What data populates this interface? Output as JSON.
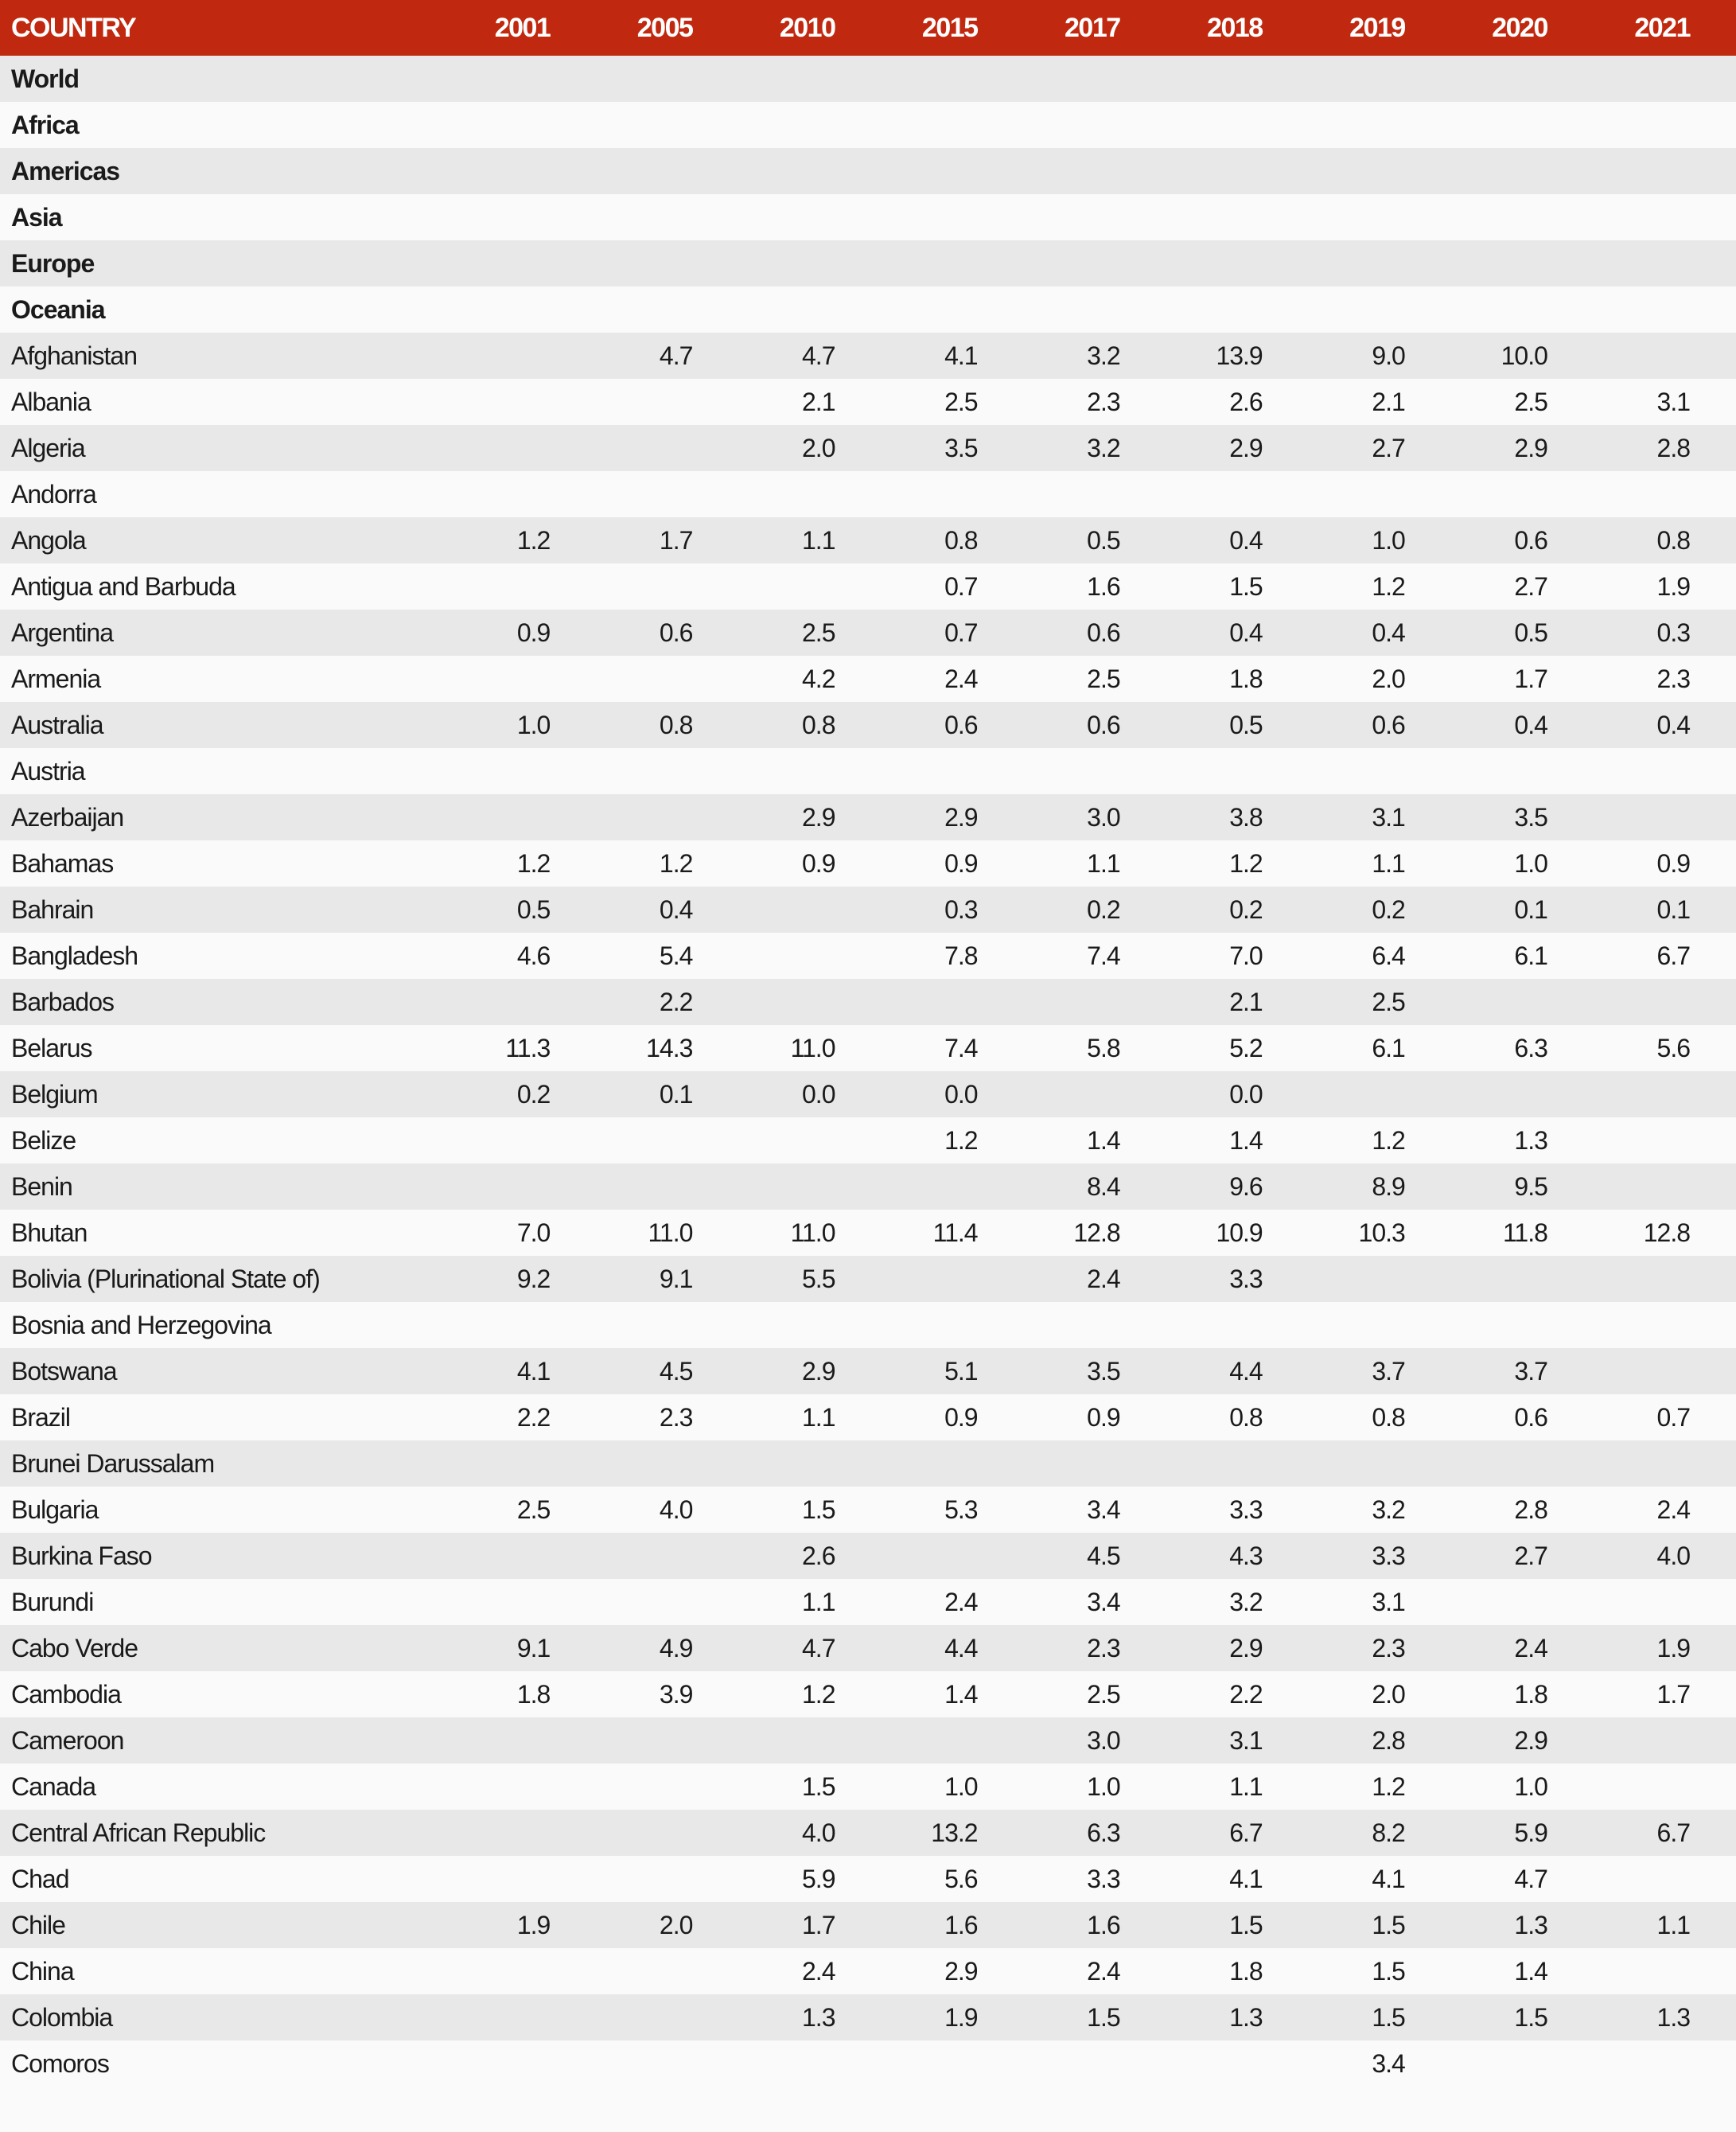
{
  "table": {
    "country_header": "COUNTRY",
    "years": [
      "2001",
      "2005",
      "2010",
      "2015",
      "2017",
      "2018",
      "2019",
      "2020",
      "2021"
    ],
    "header_color": "#c0290f",
    "rows": [
      {
        "name": "World",
        "bold": true,
        "values": [
          null,
          null,
          null,
          null,
          null,
          null,
          null,
          null,
          null
        ]
      },
      {
        "name": "Africa",
        "bold": true,
        "values": [
          null,
          null,
          null,
          null,
          null,
          null,
          null,
          null,
          null
        ]
      },
      {
        "name": "Americas",
        "bold": true,
        "values": [
          null,
          null,
          null,
          null,
          null,
          null,
          null,
          null,
          null
        ]
      },
      {
        "name": "Asia",
        "bold": true,
        "values": [
          null,
          null,
          null,
          null,
          null,
          null,
          null,
          null,
          null
        ]
      },
      {
        "name": "Europe",
        "bold": true,
        "values": [
          null,
          null,
          null,
          null,
          null,
          null,
          null,
          null,
          null
        ]
      },
      {
        "name": "Oceania",
        "bold": true,
        "values": [
          null,
          null,
          null,
          null,
          null,
          null,
          null,
          null,
          null
        ]
      },
      {
        "name": "Afghanistan",
        "values": [
          null,
          "4.7",
          "4.7",
          "4.1",
          "3.2",
          "13.9",
          "9.0",
          "10.0",
          null
        ]
      },
      {
        "name": "Albania",
        "values": [
          null,
          null,
          "2.1",
          "2.5",
          "2.3",
          "2.6",
          "2.1",
          "2.5",
          "3.1"
        ]
      },
      {
        "name": "Algeria",
        "values": [
          null,
          null,
          "2.0",
          "3.5",
          "3.2",
          "2.9",
          "2.7",
          "2.9",
          "2.8"
        ]
      },
      {
        "name": "Andorra",
        "values": [
          null,
          null,
          null,
          null,
          null,
          null,
          null,
          null,
          null
        ]
      },
      {
        "name": "Angola",
        "values": [
          "1.2",
          "1.7",
          "1.1",
          "0.8",
          "0.5",
          "0.4",
          "1.0",
          "0.6",
          "0.8"
        ]
      },
      {
        "name": "Antigua and Barbuda",
        "values": [
          null,
          null,
          null,
          "0.7",
          "1.6",
          "1.5",
          "1.2",
          "2.7",
          "1.9"
        ]
      },
      {
        "name": "Argentina",
        "values": [
          "0.9",
          "0.6",
          "2.5",
          "0.7",
          "0.6",
          "0.4",
          "0.4",
          "0.5",
          "0.3"
        ]
      },
      {
        "name": "Armenia",
        "values": [
          null,
          null,
          "4.2",
          "2.4",
          "2.5",
          "1.8",
          "2.0",
          "1.7",
          "2.3"
        ]
      },
      {
        "name": "Australia",
        "values": [
          "1.0",
          "0.8",
          "0.8",
          "0.6",
          "0.6",
          "0.5",
          "0.6",
          "0.4",
          "0.4"
        ]
      },
      {
        "name": "Austria",
        "values": [
          null,
          null,
          null,
          null,
          null,
          null,
          null,
          null,
          null
        ]
      },
      {
        "name": "Azerbaijan",
        "values": [
          null,
          null,
          "2.9",
          "2.9",
          "3.0",
          "3.8",
          "3.1",
          "3.5",
          null
        ]
      },
      {
        "name": "Bahamas",
        "values": [
          "1.2",
          "1.2",
          "0.9",
          "0.9",
          "1.1",
          "1.2",
          "1.1",
          "1.0",
          "0.9"
        ]
      },
      {
        "name": "Bahrain",
        "values": [
          "0.5",
          "0.4",
          null,
          "0.3",
          "0.2",
          "0.2",
          "0.2",
          "0.1",
          "0.1"
        ]
      },
      {
        "name": "Bangladesh",
        "values": [
          "4.6",
          "5.4",
          null,
          "7.8",
          "7.4",
          "7.0",
          "6.4",
          "6.1",
          "6.7"
        ]
      },
      {
        "name": "Barbados",
        "values": [
          null,
          "2.2",
          null,
          null,
          null,
          "2.1",
          "2.5",
          null,
          null
        ]
      },
      {
        "name": "Belarus",
        "values": [
          "11.3",
          "14.3",
          "11.0",
          "7.4",
          "5.8",
          "5.2",
          "6.1",
          "6.3",
          "5.6"
        ]
      },
      {
        "name": "Belgium",
        "values": [
          "0.2",
          "0.1",
          "0.0",
          "0.0",
          null,
          "0.0",
          null,
          null,
          null
        ]
      },
      {
        "name": "Belize",
        "values": [
          null,
          null,
          null,
          "1.2",
          "1.4",
          "1.4",
          "1.2",
          "1.3",
          null
        ]
      },
      {
        "name": "Benin",
        "values": [
          null,
          null,
          null,
          null,
          "8.4",
          "9.6",
          "8.9",
          "9.5",
          null
        ]
      },
      {
        "name": "Bhutan",
        "values": [
          "7.0",
          "11.0",
          "11.0",
          "11.4",
          "12.8",
          "10.9",
          "10.3",
          "11.8",
          "12.8"
        ]
      },
      {
        "name": "Bolivia (Plurinational State of)",
        "values": [
          "9.2",
          "9.1",
          "5.5",
          null,
          "2.4",
          "3.3",
          null,
          null,
          null
        ]
      },
      {
        "name": "Bosnia and Herzegovina",
        "values": [
          null,
          null,
          null,
          null,
          null,
          null,
          null,
          null,
          null
        ]
      },
      {
        "name": "Botswana",
        "values": [
          "4.1",
          "4.5",
          "2.9",
          "5.1",
          "3.5",
          "4.4",
          "3.7",
          "3.7",
          null
        ]
      },
      {
        "name": "Brazil",
        "values": [
          "2.2",
          "2.3",
          "1.1",
          "0.9",
          "0.9",
          "0.8",
          "0.8",
          "0.6",
          "0.7"
        ]
      },
      {
        "name": "Brunei Darussalam",
        "values": [
          null,
          null,
          null,
          null,
          null,
          null,
          null,
          null,
          null
        ]
      },
      {
        "name": "Bulgaria",
        "values": [
          "2.5",
          "4.0",
          "1.5",
          "5.3",
          "3.4",
          "3.3",
          "3.2",
          "2.8",
          "2.4"
        ]
      },
      {
        "name": "Burkina Faso",
        "values": [
          null,
          null,
          "2.6",
          null,
          "4.5",
          "4.3",
          "3.3",
          "2.7",
          "4.0"
        ]
      },
      {
        "name": "Burundi",
        "values": [
          null,
          null,
          "1.1",
          "2.4",
          "3.4",
          "3.2",
          "3.1",
          null,
          null
        ]
      },
      {
        "name": "Cabo Verde",
        "values": [
          "9.1",
          "4.9",
          "4.7",
          "4.4",
          "2.3",
          "2.9",
          "2.3",
          "2.4",
          "1.9"
        ]
      },
      {
        "name": "Cambodia",
        "values": [
          "1.8",
          "3.9",
          "1.2",
          "1.4",
          "2.5",
          "2.2",
          "2.0",
          "1.8",
          "1.7"
        ]
      },
      {
        "name": "Cameroon",
        "values": [
          null,
          null,
          null,
          null,
          "3.0",
          "3.1",
          "2.8",
          "2.9",
          null
        ]
      },
      {
        "name": "Canada",
        "values": [
          null,
          null,
          "1.5",
          "1.0",
          "1.0",
          "1.1",
          "1.2",
          "1.0",
          null
        ]
      },
      {
        "name": "Central African Republic",
        "values": [
          null,
          null,
          "4.0",
          "13.2",
          "6.3",
          "6.7",
          "8.2",
          "5.9",
          "6.7"
        ]
      },
      {
        "name": "Chad",
        "values": [
          null,
          null,
          "5.9",
          "5.6",
          "3.3",
          "4.1",
          "4.1",
          "4.7",
          null
        ]
      },
      {
        "name": "Chile",
        "values": [
          "1.9",
          "2.0",
          "1.7",
          "1.6",
          "1.6",
          "1.5",
          "1.5",
          "1.3",
          "1.1"
        ]
      },
      {
        "name": "China",
        "values": [
          null,
          null,
          "2.4",
          "2.9",
          "2.4",
          "1.8",
          "1.5",
          "1.4",
          null
        ]
      },
      {
        "name": "Colombia",
        "values": [
          null,
          null,
          "1.3",
          "1.9",
          "1.5",
          "1.3",
          "1.5",
          "1.5",
          "1.3"
        ]
      },
      {
        "name": "Comoros",
        "values": [
          null,
          null,
          null,
          null,
          null,
          null,
          "3.4",
          null,
          null
        ]
      }
    ]
  }
}
